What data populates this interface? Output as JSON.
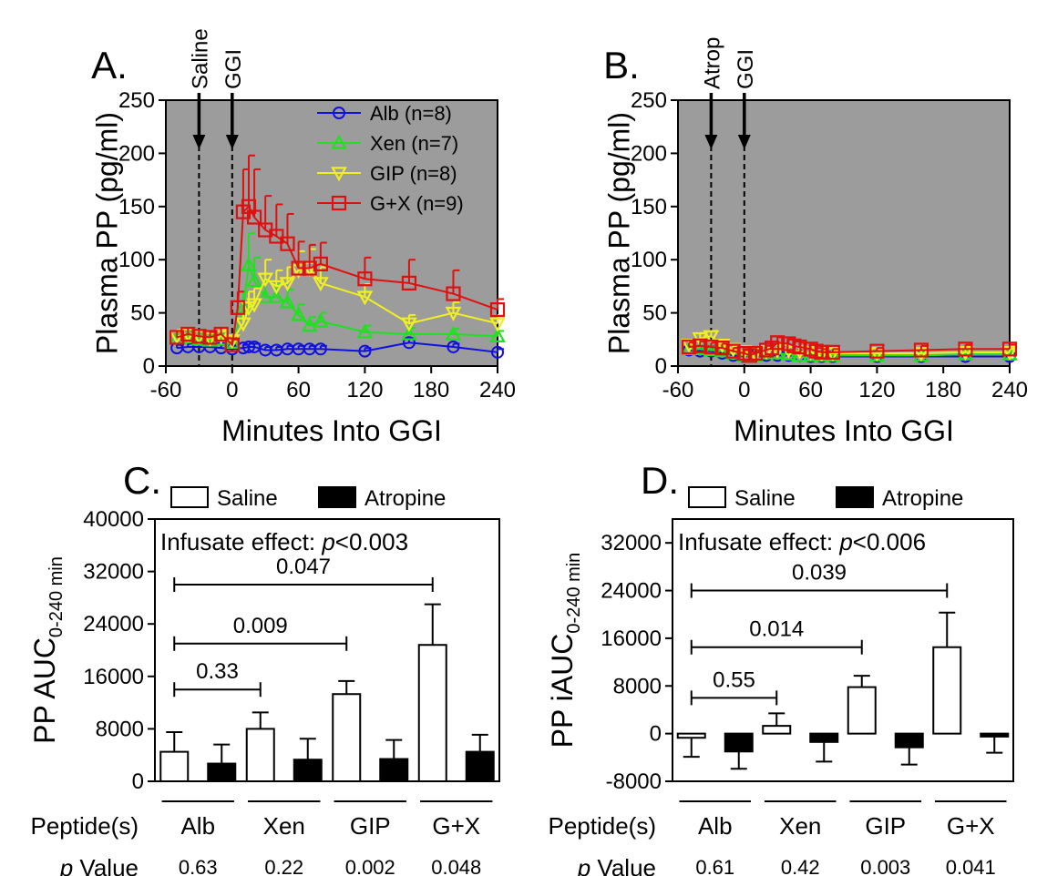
{
  "colors": {
    "plot_bg": "#9c9c9c",
    "alb": "#1010e0",
    "xen": "#20e020",
    "gip": "#f0f020",
    "gx": "#e01010",
    "red_text": "#e01010",
    "blue_text": "#1010e0"
  },
  "chart_data": [
    {
      "panel": "A.",
      "type": "line",
      "ylabel": "Plasma PP (pg/ml)",
      "xlabel": "Minutes Into GGI",
      "xlim": [
        -60,
        240
      ],
      "ylim": [
        0,
        250
      ],
      "xticks": [
        "-60",
        "0",
        "60",
        "120",
        "180",
        "240"
      ],
      "yticks": [
        "0",
        "50",
        "100",
        "150",
        "200",
        "250"
      ],
      "grid": false,
      "legend_position": "top-right",
      "annotations": [
        {
          "text": "Saline",
          "x": -30,
          "color": "blue"
        },
        {
          "text": "GGI",
          "x": 0,
          "color": "black"
        }
      ],
      "series": [
        {
          "name": "Alb (n=8)",
          "marker": "circle",
          "color_key": "alb",
          "x": [
            -50,
            -40,
            -30,
            -20,
            -10,
            0,
            10,
            15,
            20,
            30,
            40,
            50,
            60,
            70,
            80,
            120,
            160,
            200,
            240
          ],
          "y": [
            17,
            18,
            18,
            18,
            17,
            16,
            17,
            18,
            18,
            15,
            15,
            16,
            16,
            16,
            16,
            14,
            22,
            18,
            13
          ],
          "err": [
            3,
            3,
            3,
            3,
            3,
            3,
            3,
            3,
            3,
            3,
            3,
            3,
            3,
            3,
            3,
            3,
            4,
            3,
            3
          ]
        },
        {
          "name": "Xen (n=7)",
          "marker": "triangle-up",
          "color_key": "xen",
          "x": [
            -50,
            -40,
            -30,
            -20,
            -10,
            0,
            10,
            15,
            20,
            30,
            40,
            50,
            60,
            70,
            80,
            120,
            160,
            200,
            240
          ],
          "y": [
            26,
            27,
            25,
            24,
            25,
            22,
            55,
            95,
            80,
            65,
            65,
            60,
            48,
            38,
            42,
            32,
            30,
            30,
            28
          ],
          "err": [
            6,
            6,
            5,
            5,
            5,
            5,
            15,
            30,
            22,
            15,
            12,
            12,
            10,
            8,
            8,
            6,
            6,
            5,
            5
          ]
        },
        {
          "name": "GIP (n=8)",
          "marker": "triangle-down",
          "color_key": "gip",
          "x": [
            -50,
            -40,
            -30,
            -20,
            -10,
            0,
            10,
            15,
            20,
            30,
            40,
            50,
            60,
            70,
            80,
            120,
            160,
            200,
            240
          ],
          "y": [
            28,
            30,
            28,
            26,
            28,
            24,
            40,
            55,
            58,
            82,
            75,
            78,
            90,
            92,
            78,
            65,
            40,
            50,
            40
          ],
          "err": [
            6,
            6,
            6,
            5,
            6,
            5,
            10,
            15,
            15,
            18,
            15,
            15,
            18,
            18,
            15,
            12,
            8,
            10,
            8
          ]
        },
        {
          "name": "G+X (n=9)",
          "marker": "square",
          "color_key": "gx",
          "x": [
            -50,
            -40,
            -30,
            -20,
            -10,
            0,
            5,
            10,
            15,
            20,
            30,
            40,
            50,
            60,
            70,
            80,
            120,
            160,
            200,
            240
          ],
          "y": [
            27,
            30,
            28,
            27,
            30,
            20,
            55,
            145,
            150,
            140,
            128,
            122,
            115,
            92,
            92,
            96,
            82,
            78,
            68,
            53
          ],
          "err": [
            6,
            6,
            6,
            5,
            6,
            5,
            15,
            40,
            48,
            45,
            32,
            30,
            28,
            25,
            22,
            20,
            20,
            22,
            22,
            10
          ]
        }
      ]
    },
    {
      "panel": "B.",
      "type": "line",
      "ylabel": "Plasma PP (pg/ml)",
      "xlabel": "Minutes Into GGI",
      "xlim": [
        -60,
        240
      ],
      "ylim": [
        0,
        250
      ],
      "xticks": [
        "-60",
        "0",
        "60",
        "120",
        "180",
        "240"
      ],
      "yticks": [
        "0",
        "50",
        "100",
        "150",
        "200",
        "250"
      ],
      "grid": false,
      "annotations": [
        {
          "text": "Atrop",
          "x": -30,
          "color": "red"
        },
        {
          "text": "GGI",
          "x": 0,
          "color": "black"
        }
      ],
      "series": [
        {
          "name": "Alb",
          "marker": "circle",
          "color_key": "alb",
          "x": [
            -50,
            -40,
            -30,
            -20,
            -10,
            0,
            10,
            20,
            30,
            40,
            50,
            60,
            70,
            80,
            120,
            160,
            200,
            240
          ],
          "y": [
            15,
            14,
            14,
            12,
            10,
            9,
            10,
            10,
            10,
            10,
            10,
            9,
            9,
            9,
            9,
            9,
            9,
            9
          ],
          "err": [
            3,
            3,
            3,
            3,
            3,
            3,
            3,
            3,
            3,
            3,
            3,
            3,
            3,
            3,
            3,
            3,
            3,
            3
          ]
        },
        {
          "name": "Xen",
          "marker": "triangle-up",
          "color_key": "xen",
          "x": [
            -50,
            -40,
            -30,
            -20,
            -10,
            0,
            10,
            20,
            30,
            40,
            50,
            60,
            70,
            80,
            120,
            160,
            200,
            240
          ],
          "y": [
            16,
            16,
            15,
            14,
            12,
            10,
            10,
            12,
            12,
            11,
            10,
            10,
            10,
            10,
            10,
            10,
            11,
            11
          ],
          "err": [
            3,
            3,
            3,
            3,
            3,
            3,
            3,
            3,
            3,
            3,
            3,
            3,
            3,
            3,
            3,
            3,
            3,
            3
          ]
        },
        {
          "name": "GIP",
          "marker": "triangle-down",
          "color_key": "gip",
          "x": [
            -50,
            -40,
            -30,
            -20,
            -10,
            0,
            10,
            20,
            30,
            40,
            50,
            60,
            70,
            80,
            120,
            160,
            200,
            240
          ],
          "y": [
            20,
            26,
            28,
            20,
            16,
            14,
            12,
            14,
            15,
            15,
            14,
            13,
            12,
            12,
            12,
            12,
            13,
            13
          ],
          "err": [
            4,
            5,
            5,
            4,
            3,
            3,
            3,
            3,
            3,
            3,
            3,
            3,
            3,
            3,
            3,
            3,
            3,
            3
          ]
        },
        {
          "name": "G+X",
          "marker": "square",
          "color_key": "gx",
          "x": [
            -50,
            -40,
            -30,
            -20,
            -10,
            0,
            5,
            10,
            20,
            25,
            30,
            40,
            45,
            50,
            60,
            65,
            70,
            80,
            120,
            160,
            200,
            240
          ],
          "y": [
            18,
            19,
            18,
            17,
            14,
            12,
            10,
            12,
            15,
            17,
            22,
            21,
            19,
            18,
            16,
            14,
            13,
            13,
            14,
            15,
            16,
            16
          ],
          "err": [
            4,
            4,
            4,
            4,
            3,
            3,
            3,
            3,
            4,
            4,
            5,
            5,
            4,
            4,
            4,
            3,
            3,
            3,
            3,
            4,
            4,
            4
          ]
        }
      ]
    },
    {
      "panel": "C.",
      "type": "bar",
      "ylabel_main": "PP AUC",
      "ylabel_sub": "0-240 min",
      "ylim": [
        0,
        40000
      ],
      "yticks": [
        "0",
        "8000",
        "16000",
        "24000",
        "32000",
        "40000"
      ],
      "categories": [
        "Alb",
        "Xen",
        "GIP",
        "G+X"
      ],
      "legend_position": "top",
      "legend_saline": "Saline",
      "legend_atropine": "Atropine",
      "effect_prefix": "Infusate effect: ",
      "effect_p": "p",
      "effect_value": "<0.003",
      "series": [
        {
          "name": "Saline",
          "fill": "white",
          "values": [
            4500,
            8000,
            13300,
            20800
          ],
          "err": [
            3000,
            2500,
            2000,
            6200
          ]
        },
        {
          "name": "Atropine",
          "fill": "black",
          "values": [
            2700,
            3300,
            3400,
            4500
          ],
          "err": [
            2900,
            3200,
            2900,
            2600
          ]
        }
      ],
      "brackets": [
        {
          "label": "0.33",
          "from": 0,
          "to": 1,
          "y": 14000
        },
        {
          "label": "0.009",
          "from": 0,
          "to": 2,
          "y": 21000
        },
        {
          "label": "0.047",
          "from": 0,
          "to": 3,
          "y": 30000
        }
      ],
      "row_label_peptides": "Peptide(s)",
      "row_label_p": "p",
      "row_label_value": " Value",
      "p_values": [
        {
          "text": "0.63",
          "red": false
        },
        {
          "text": "0.22",
          "red": false
        },
        {
          "text": "0.002",
          "red": true
        },
        {
          "text": "0.048",
          "red": true
        }
      ]
    },
    {
      "panel": "D.",
      "type": "bar",
      "ylabel_main": "PP iAUC",
      "ylabel_sub": "0-240 min",
      "ylim": [
        -8000,
        36000
      ],
      "yticks": [
        "-8000",
        "0",
        "8000",
        "16000",
        "24000",
        "32000"
      ],
      "categories": [
        "Alb",
        "Xen",
        "GIP",
        "G+X"
      ],
      "legend_position": "top",
      "legend_saline": "Saline",
      "legend_atropine": "Atropine",
      "effect_prefix": "Infusate effect: ",
      "effect_p": "p",
      "effect_value": "<0.006",
      "series": [
        {
          "name": "Saline",
          "fill": "white",
          "values": [
            -700,
            1300,
            7800,
            14500
          ],
          "err": [
            3200,
            2100,
            1900,
            5800
          ]
        },
        {
          "name": "Atropine",
          "fill": "black",
          "values": [
            -3000,
            -1400,
            -2300,
            -500
          ],
          "err": [
            2900,
            3300,
            2900,
            2700
          ]
        }
      ],
      "brackets": [
        {
          "label": "0.55",
          "from": 0,
          "to": 1,
          "y": 6000
        },
        {
          "label": "0.014",
          "from": 0,
          "to": 2,
          "y": 14500
        },
        {
          "label": "0.039",
          "from": 0,
          "to": 3,
          "y": 24000
        }
      ],
      "row_label_peptides": "Peptide(s)",
      "row_label_p": "p",
      "row_label_value": " Value",
      "p_values": [
        {
          "text": "0.61",
          "red": false
        },
        {
          "text": "0.42",
          "red": false
        },
        {
          "text": "0.003",
          "red": true
        },
        {
          "text": "0.041",
          "red": true
        }
      ]
    }
  ]
}
